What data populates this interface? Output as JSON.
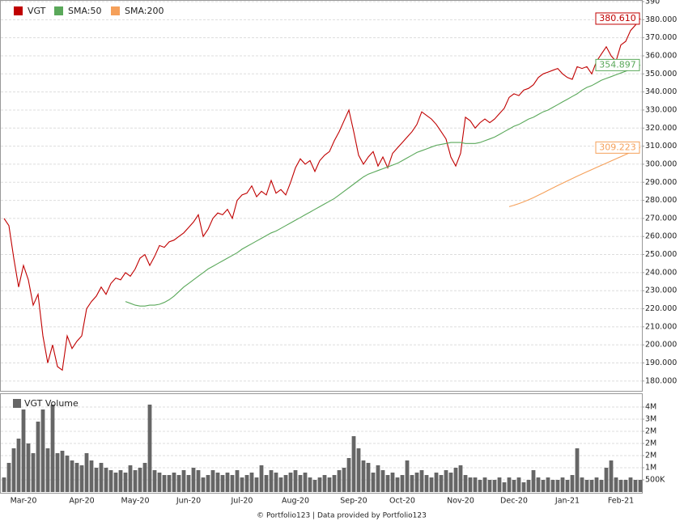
{
  "chart_data": [
    {
      "type": "line",
      "series": [
        {
          "name": "VGT",
          "color": "#c00000",
          "values": [
            270,
            266,
            248,
            232,
            244,
            236,
            222,
            228,
            205,
            190,
            200,
            188,
            186,
            205,
            198,
            202,
            205,
            220,
            224,
            227,
            232,
            228,
            234,
            237,
            236,
            240,
            238,
            242,
            248,
            250,
            244,
            249,
            255,
            254,
            257,
            258,
            260,
            262,
            265,
            268,
            272,
            260,
            264,
            270,
            273,
            272,
            275,
            270,
            280,
            283,
            284,
            288,
            282,
            285,
            283,
            291,
            284,
            286,
            283,
            290,
            298,
            303,
            300,
            302,
            296,
            302,
            305,
            307,
            313,
            318,
            324,
            330,
            318,
            305,
            300,
            304,
            307,
            299,
            304,
            298,
            306,
            309,
            312,
            315,
            318,
            322,
            329,
            327,
            325,
            322,
            318,
            314,
            304,
            299,
            306,
            326,
            324,
            320,
            323,
            325,
            323,
            325,
            328,
            331,
            337,
            339,
            338,
            341,
            342,
            344,
            348,
            350,
            351,
            352,
            353,
            350,
            348,
            347,
            354,
            353,
            354,
            350,
            357,
            361,
            365,
            360,
            357,
            366,
            368,
            374,
            377,
            380.61
          ]
        },
        {
          "name": "SMA:50",
          "color": "#5aa85a",
          "values": [
            null,
            null,
            null,
            null,
            null,
            null,
            null,
            null,
            null,
            null,
            null,
            null,
            null,
            null,
            null,
            null,
            null,
            null,
            null,
            null,
            null,
            null,
            null,
            null,
            null,
            224,
            223,
            222,
            221.5,
            221.5,
            222,
            222,
            222.5,
            223.5,
            225,
            227,
            229.5,
            232,
            234,
            236,
            238,
            240,
            242,
            243.5,
            245,
            246.5,
            248,
            249.5,
            251,
            253,
            254.5,
            256,
            257.5,
            259,
            260.5,
            262,
            263,
            264.5,
            266,
            267.5,
            269,
            270.5,
            272,
            273.5,
            275,
            276.5,
            278,
            279.5,
            281,
            283,
            285,
            287,
            289,
            291,
            293,
            294.5,
            295.5,
            296.5,
            297.5,
            298.5,
            299.5,
            300.5,
            302,
            303.5,
            305,
            306.5,
            307.5,
            308.5,
            309.5,
            310.5,
            311,
            311.5,
            312,
            312,
            312,
            311.5,
            311.5,
            311.5,
            312,
            313,
            314,
            315,
            316.5,
            318,
            319.5,
            321,
            322,
            323.5,
            325,
            326,
            327.5,
            329,
            330,
            331.5,
            333,
            334.5,
            336,
            337.5,
            339,
            341,
            342.5,
            343.5,
            345,
            346.5,
            347.5,
            348.5,
            349.5,
            350.5,
            351.5,
            352.5,
            353.5,
            354.897
          ]
        },
        {
          "name": "SMA:200",
          "color": "#f5a05a",
          "values": [
            null,
            null,
            null,
            null,
            null,
            null,
            null,
            null,
            null,
            null,
            null,
            null,
            null,
            null,
            null,
            null,
            null,
            null,
            null,
            null,
            null,
            null,
            null,
            null,
            null,
            null,
            null,
            null,
            null,
            null,
            null,
            null,
            null,
            null,
            null,
            null,
            null,
            null,
            null,
            null,
            null,
            null,
            null,
            null,
            null,
            null,
            null,
            null,
            null,
            null,
            null,
            null,
            null,
            null,
            null,
            null,
            null,
            null,
            null,
            null,
            null,
            null,
            null,
            null,
            null,
            null,
            null,
            null,
            null,
            null,
            null,
            null,
            null,
            null,
            null,
            null,
            null,
            null,
            null,
            null,
            null,
            null,
            null,
            null,
            null,
            null,
            null,
            null,
            null,
            null,
            null,
            null,
            null,
            null,
            null,
            null,
            null,
            null,
            null,
            null,
            null,
            null,
            null,
            null,
            276.5,
            277.3,
            278.2,
            279.2,
            280.3,
            281.5,
            282.8,
            284.1,
            285.5,
            286.9,
            288.2,
            289.5,
            290.8,
            292.1,
            293.4,
            294.6,
            295.8,
            297,
            298.2,
            299.4,
            300.6,
            301.8,
            303,
            304.2,
            305.4,
            306.6,
            307.9,
            309.223
          ]
        }
      ],
      "ylim": [
        175,
        390
      ],
      "yticks": [
        {
          "value": 180,
          "label": "180.000"
        },
        {
          "value": 190,
          "label": "190.000"
        },
        {
          "value": 200,
          "label": "200.000"
        },
        {
          "value": 210,
          "label": "210.000"
        },
        {
          "value": 220,
          "label": "220.000"
        },
        {
          "value": 230,
          "label": "230.000"
        },
        {
          "value": 240,
          "label": "240.000"
        },
        {
          "value": 250,
          "label": "250.000"
        },
        {
          "value": 260,
          "label": "260.000"
        },
        {
          "value": 270,
          "label": "270.000"
        },
        {
          "value": 280,
          "label": "280.000"
        },
        {
          "value": 290,
          "label": "290.000"
        },
        {
          "value": 300,
          "label": "300.000"
        },
        {
          "value": 310,
          "label": "310.000"
        },
        {
          "value": 320,
          "label": "320.000"
        },
        {
          "value": 330,
          "label": "330.000"
        },
        {
          "value": 340,
          "label": "340.000"
        },
        {
          "value": 350,
          "label": "350.000"
        },
        {
          "value": 360,
          "label": "360.000"
        },
        {
          "value": 370,
          "label": "370.000"
        },
        {
          "value": 380,
          "label": "380.000"
        },
        {
          "value": 390,
          "label": "390"
        }
      ],
      "grid": true,
      "annotations": [
        {
          "text": "380.610",
          "value": 380.61,
          "color": "#c00000"
        },
        {
          "text": "354.897",
          "value": 354.897,
          "color": "#5aa85a"
        },
        {
          "text": "309.223",
          "value": 309.223,
          "color": "#f5a05a"
        }
      ]
    },
    {
      "type": "bar",
      "title": "VGT Volume",
      "color": "#666666",
      "categories": [
        null,
        null,
        null,
        null,
        "Mar-20",
        null,
        null,
        null,
        null,
        null,
        null,
        null,
        null,
        null,
        null,
        null,
        "Apr-20",
        null,
        null,
        null,
        null,
        null,
        null,
        null,
        null,
        null,
        null,
        "May-20",
        null,
        null,
        null,
        null,
        null,
        null,
        null,
        null,
        null,
        null,
        "Jun-20",
        null,
        null,
        null,
        null,
        null,
        null,
        null,
        null,
        null,
        null,
        "Jul-20",
        null,
        null,
        null,
        null,
        null,
        null,
        null,
        null,
        null,
        null,
        "Aug-20",
        null,
        null,
        null,
        null,
        null,
        null,
        null,
        null,
        null,
        null,
        null,
        "Sep-20",
        null,
        null,
        null,
        null,
        null,
        null,
        null,
        null,
        null,
        "Oct-20",
        null,
        null,
        null,
        null,
        null,
        null,
        null,
        null,
        null,
        null,
        null,
        "Nov-20",
        null,
        null,
        null,
        null,
        null,
        null,
        null,
        null,
        null,
        null,
        "Dec-20",
        null,
        null,
        null,
        null,
        null,
        null,
        null,
        null,
        null,
        null,
        "Jan-21",
        null,
        null,
        null,
        null,
        null,
        null,
        null,
        null,
        null,
        null,
        "Feb-21",
        null,
        null,
        null,
        null
      ],
      "values": [
        600000,
        1200000,
        1800000,
        2200000,
        3400000,
        2000000,
        1600000,
        2900000,
        3400000,
        1800000,
        3600000,
        1600000,
        1700000,
        1500000,
        1300000,
        1200000,
        1100000,
        1600000,
        1300000,
        1000000,
        1200000,
        1000000,
        900000,
        800000,
        900000,
        800000,
        1100000,
        900000,
        1000000,
        1200000,
        3600000,
        900000,
        800000,
        700000,
        700000,
        800000,
        700000,
        900000,
        700000,
        1000000,
        900000,
        600000,
        700000,
        900000,
        800000,
        700000,
        800000,
        700000,
        900000,
        600000,
        700000,
        800000,
        600000,
        1100000,
        700000,
        900000,
        800000,
        600000,
        700000,
        800000,
        900000,
        700000,
        800000,
        600000,
        500000,
        600000,
        700000,
        600000,
        700000,
        900000,
        1000000,
        1400000,
        2300000,
        1800000,
        1300000,
        1200000,
        800000,
        1100000,
        900000,
        700000,
        800000,
        600000,
        700000,
        1300000,
        700000,
        800000,
        900000,
        700000,
        600000,
        800000,
        700000,
        900000,
        800000,
        1000000,
        1100000,
        700000,
        600000,
        600000,
        500000,
        600000,
        500000,
        500000,
        600000,
        400000,
        600000,
        500000,
        600000,
        400000,
        500000,
        900000,
        600000,
        500000,
        600000,
        500000,
        500000,
        600000,
        500000,
        700000,
        1800000,
        600000,
        500000,
        500000,
        600000,
        500000,
        1000000,
        1300000,
        600000,
        500000,
        500000,
        600000,
        500000,
        500000
      ],
      "ylim": [
        0,
        4000000
      ],
      "yticks": [
        {
          "value": 500000,
          "label": "500K"
        },
        {
          "value": 1000000,
          "label": "1M"
        },
        {
          "value": 1500000,
          "label": "2M"
        },
        {
          "value": 2000000,
          "label": "2M"
        },
        {
          "value": 2500000,
          "label": "2M"
        },
        {
          "value": 3000000,
          "label": "3M"
        },
        {
          "value": 3500000,
          "label": "4M"
        }
      ],
      "grid": true
    }
  ],
  "footer": "© Portfolio123 | Data provided by Portfolio123"
}
